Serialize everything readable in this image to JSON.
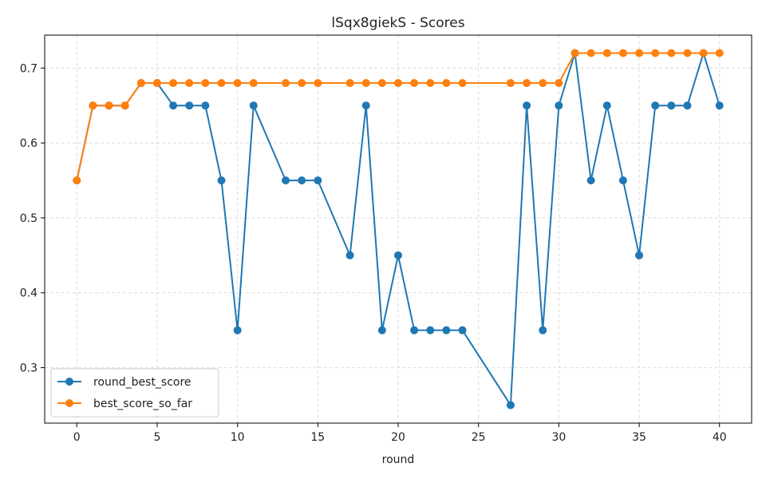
{
  "chart_data": {
    "type": "line",
    "title": "lSqx8giekS - Scores",
    "xlabel": "round",
    "ylabel": "",
    "xlim": [
      -2,
      42
    ],
    "ylim": [
      0.226,
      0.744
    ],
    "x_ticks": [
      0,
      5,
      10,
      15,
      20,
      25,
      30,
      35,
      40
    ],
    "x_tick_labels": [
      "0",
      "5",
      "10",
      "15",
      "20",
      "25",
      "30",
      "35",
      "40"
    ],
    "y_ticks": [
      0.3,
      0.4,
      0.5,
      0.6,
      0.7
    ],
    "y_tick_labels": [
      "0.3",
      "0.4",
      "0.5",
      "0.6",
      "0.7"
    ],
    "grid": true,
    "legend_position": "bottom-left",
    "series": [
      {
        "name": "round_best_score",
        "color": "#1f77b4",
        "x": [
          0,
          1,
          2,
          3,
          4,
          5,
          6,
          7,
          8,
          9,
          10,
          11,
          13,
          14,
          15,
          17,
          18,
          19,
          20,
          21,
          22,
          23,
          24,
          27,
          28,
          29,
          30,
          31,
          32,
          33,
          34,
          35,
          36,
          37,
          38,
          39,
          40
        ],
        "y": [
          0.55,
          0.65,
          0.65,
          0.65,
          0.68,
          0.68,
          0.65,
          0.65,
          0.65,
          0.55,
          0.35,
          0.65,
          0.55,
          0.55,
          0.55,
          0.45,
          0.65,
          0.35,
          0.45,
          0.35,
          0.35,
          0.35,
          0.35,
          0.25,
          0.65,
          0.35,
          0.65,
          0.72,
          0.55,
          0.65,
          0.55,
          0.45,
          0.65,
          0.65,
          0.65,
          0.72,
          0.65
        ]
      },
      {
        "name": "best_score_so_far",
        "color": "#ff7f0e",
        "x": [
          0,
          1,
          2,
          3,
          4,
          5,
          6,
          7,
          8,
          9,
          10,
          11,
          13,
          14,
          15,
          17,
          18,
          19,
          20,
          21,
          22,
          23,
          24,
          27,
          28,
          29,
          30,
          31,
          32,
          33,
          34,
          35,
          36,
          37,
          38,
          39,
          40
        ],
        "y": [
          0.55,
          0.65,
          0.65,
          0.65,
          0.68,
          0.68,
          0.68,
          0.68,
          0.68,
          0.68,
          0.68,
          0.68,
          0.68,
          0.68,
          0.68,
          0.68,
          0.68,
          0.68,
          0.68,
          0.68,
          0.68,
          0.68,
          0.68,
          0.68,
          0.68,
          0.68,
          0.68,
          0.72,
          0.72,
          0.72,
          0.72,
          0.72,
          0.72,
          0.72,
          0.72,
          0.72,
          0.72
        ]
      }
    ]
  }
}
